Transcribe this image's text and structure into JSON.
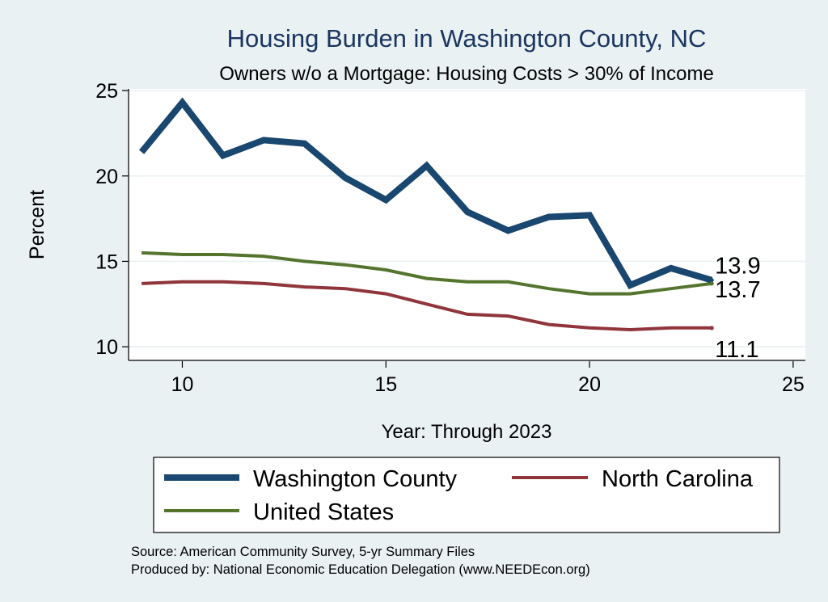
{
  "chart_data": {
    "type": "line",
    "title": "Housing Burden in Washington County, NC",
    "subtitle": "Owners w/o a Mortgage: Housing Costs > 30% of Income",
    "xlabel": "Year: Through 2023",
    "ylabel": "Percent",
    "xlim": [
      8.7,
      25.3
    ],
    "ylim": [
      9.2,
      25.1
    ],
    "x_ticks": [
      "10",
      "15",
      "20",
      "25"
    ],
    "y_ticks": [
      "10",
      "15",
      "20",
      "25"
    ],
    "grid": true,
    "x": [
      9,
      10,
      11,
      12,
      13,
      14,
      15,
      16,
      17,
      18,
      19,
      20,
      21,
      22,
      23
    ],
    "series": [
      {
        "name": "Washington County",
        "color": "#1a476f",
        "values": [
          21.4,
          24.3,
          21.2,
          22.1,
          21.9,
          19.9,
          18.6,
          20.6,
          17.9,
          16.8,
          17.6,
          17.7,
          13.6,
          14.6,
          13.9
        ],
        "end_label": "13.9"
      },
      {
        "name": "North Carolina",
        "color": "#90353b",
        "values": [
          13.7,
          13.8,
          13.8,
          13.7,
          13.5,
          13.4,
          13.1,
          12.5,
          11.9,
          11.8,
          11.3,
          11.1,
          11.0,
          11.1,
          11.1
        ],
        "end_label": "11.1"
      },
      {
        "name": "United States",
        "color": "#55752f",
        "values": [
          15.5,
          15.4,
          15.4,
          15.3,
          15.0,
          14.8,
          14.5,
          14.0,
          13.8,
          13.8,
          13.4,
          13.1,
          13.1,
          13.4,
          13.7
        ],
        "end_label": "13.7"
      }
    ],
    "legend": {
      "position": "bottom",
      "entries": [
        "Washington County",
        "North Carolina",
        "United States"
      ]
    },
    "notes": [
      "Source: American Community Survey, 5-yr Summary Files",
      "Produced by: National Economic Education Delegation (www.NEEDEcon.org)"
    ]
  }
}
